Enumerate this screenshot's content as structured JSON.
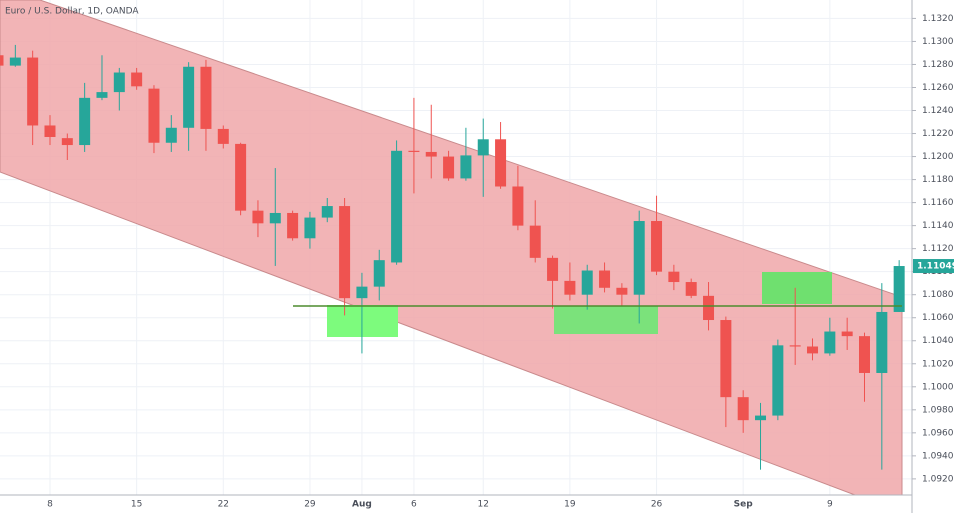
{
  "chart_data": {
    "type": "candlestick",
    "title": "Euro / U.S. Dollar, 1D, OANDA",
    "categories": [
      null,
      null,
      null,
      "8",
      null,
      null,
      null,
      null,
      "15",
      null,
      null,
      null,
      null,
      "22",
      null,
      null,
      null,
      null,
      "29",
      null,
      null,
      "Aug",
      null,
      null,
      "6",
      null,
      null,
      null,
      "12",
      null,
      null,
      null,
      null,
      "19",
      null,
      null,
      null,
      null,
      "26",
      null,
      null,
      null,
      null,
      "Sep",
      null,
      null,
      null,
      null,
      "9",
      null,
      null,
      null,
      null
    ],
    "open": [
      1.1288,
      1.1279,
      1.1286,
      1.1227,
      1.1216,
      1.121,
      1.1251,
      1.1256,
      1.1273,
      1.1259,
      1.1212,
      1.1225,
      1.1278,
      1.1224,
      1.1211,
      1.1153,
      1.1142,
      1.1151,
      1.1129,
      1.1147,
      1.1157,
      1.1077,
      1.1087,
      1.1108,
      1.1205,
      1.1204,
      1.12,
      1.1181,
      1.1201,
      1.1215,
      1.1174,
      1.114,
      1.1112,
      1.1092,
      1.108,
      1.1101,
      1.1086,
      1.108,
      1.1144,
      1.11,
      1.1091,
      1.1079,
      1.1058,
      1.0991,
      1.0971,
      1.0975,
      1.1036,
      1.1035,
      1.1029,
      1.1048,
      1.1044,
      1.1012,
      1.1065
    ],
    "high": [
      1.1292,
      1.1297,
      1.1292,
      1.1236,
      1.122,
      1.1264,
      1.1288,
      1.1277,
      1.1277,
      1.1262,
      1.1236,
      1.1282,
      1.1284,
      1.1227,
      1.1212,
      1.1162,
      1.119,
      1.1153,
      1.1152,
      1.1164,
      1.1164,
      1.1099,
      1.1119,
      1.1214,
      1.1251,
      1.1245,
      1.1205,
      1.1225,
      1.1233,
      1.123,
      1.1192,
      1.1162,
      1.1114,
      1.1108,
      1.1106,
      1.1108,
      1.109,
      1.1153,
      1.1166,
      1.1106,
      1.1094,
      1.1091,
      1.1061,
      1.0997,
      1.0986,
      1.1041,
      1.1086,
      1.1042,
      1.106,
      1.106,
      1.1047,
      1.109,
      1.111
    ],
    "low": [
      1.1277,
      1.1278,
      1.121,
      1.121,
      1.1197,
      1.1204,
      1.1249,
      1.124,
      1.1258,
      1.1203,
      1.1204,
      1.1205,
      1.1205,
      1.1207,
      1.1149,
      1.113,
      1.1105,
      1.1127,
      1.112,
      1.1143,
      1.1062,
      1.1029,
      1.1075,
      1.1106,
      1.1168,
      1.1181,
      1.1179,
      1.1179,
      1.1165,
      1.1172,
      1.1136,
      1.1108,
      1.1068,
      1.1075,
      1.1067,
      1.1082,
      1.107,
      1.1055,
      1.1097,
      1.1084,
      1.1077,
      1.1049,
      1.0965,
      1.096,
      1.0928,
      1.0971,
      1.1019,
      1.1023,
      1.1027,
      1.1032,
      1.0987,
      1.0928,
      1.1065
    ],
    "close": [
      1.1279,
      1.1286,
      1.1227,
      1.1217,
      1.121,
      1.1251,
      1.1256,
      1.1273,
      1.1261,
      1.1212,
      1.1225,
      1.1278,
      1.1224,
      1.1211,
      1.1153,
      1.1142,
      1.1151,
      1.1129,
      1.1147,
      1.1157,
      1.1077,
      1.1087,
      1.111,
      1.1205,
      1.1204,
      1.12,
      1.1181,
      1.1201,
      1.1215,
      1.1174,
      1.114,
      1.1112,
      1.1092,
      1.108,
      1.1101,
      1.1086,
      1.108,
      1.1144,
      1.11,
      1.1091,
      1.1079,
      1.1058,
      1.0991,
      1.0971,
      1.0975,
      1.1036,
      1.1035,
      1.1029,
      1.1048,
      1.1044,
      1.1012,
      1.1065,
      1.11049
    ],
    "up_color": "#26a69a",
    "down_color": "#ef5350",
    "ylim": [
      1.0906,
      1.1336
    ],
    "yticks": [
      {
        "value": 1.092,
        "label": "1.09200"
      },
      {
        "value": 1.094,
        "label": "1.09400"
      },
      {
        "value": 1.096,
        "label": "1.09600"
      },
      {
        "value": 1.098,
        "label": "1.09800"
      },
      {
        "value": 1.1,
        "label": "1.10000"
      },
      {
        "value": 1.102,
        "label": "1.10200"
      },
      {
        "value": 1.104,
        "label": "1.10400"
      },
      {
        "value": 1.106,
        "label": "1.10600"
      },
      {
        "value": 1.108,
        "label": "1.10800"
      },
      {
        "value": 1.11,
        "label": "1.11000"
      },
      {
        "value": 1.112,
        "label": "1.11200"
      },
      {
        "value": 1.114,
        "label": "1.11400"
      },
      {
        "value": 1.116,
        "label": "1.11600"
      },
      {
        "value": 1.118,
        "label": "1.11800"
      },
      {
        "value": 1.12,
        "label": "1.12000"
      },
      {
        "value": 1.122,
        "label": "1.12200"
      },
      {
        "value": 1.124,
        "label": "1.12400"
      },
      {
        "value": 1.126,
        "label": "1.12600"
      },
      {
        "value": 1.128,
        "label": "1.12800"
      },
      {
        "value": 1.13,
        "label": "1.13000"
      },
      {
        "value": 1.132,
        "label": "1.13200"
      }
    ],
    "grid": true
  }
}
